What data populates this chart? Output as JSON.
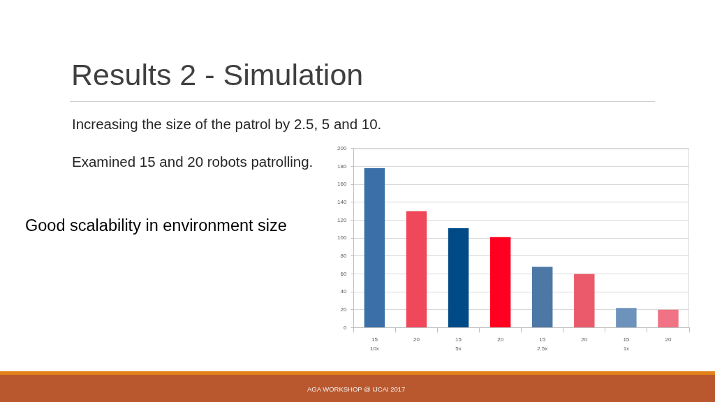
{
  "chart_data": {
    "type": "bar",
    "title": "Results 2 - Simulation",
    "subtitle": "Increasing the size of the patrol by 2.5, 5 and 10.",
    "annotations": [
      "Examined 15 and 20 robots patrolling.",
      "Good scalability in environment size",
      "AGA WORKSHOP @ IJCAI 2017"
    ],
    "categories": [
      "15\n10x",
      "20",
      "15\n5x",
      "20",
      "15\n2.5x",
      "20",
      "15\n1x",
      "20"
    ],
    "values": [
      178,
      130,
      111,
      101,
      68,
      60,
      22,
      20
    ],
    "colors": [
      "#3a6fa7",
      "#f0475b",
      "#004b87",
      "#ff0020",
      "#4d78a6",
      "#eb5a6b",
      "#6d93bd",
      "#f07284"
    ],
    "ylim": [
      0,
      200
    ],
    "yticks": [
      0,
      20,
      40,
      60,
      80,
      100,
      120,
      140,
      160,
      180,
      200
    ],
    "grid": "y"
  }
}
